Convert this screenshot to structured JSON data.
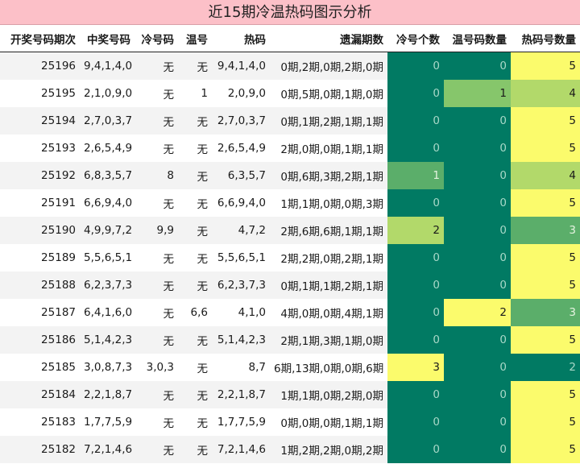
{
  "title": "近15期冷温热码图示分析",
  "headers": [
    "开奖号码期次",
    "中奖号码",
    "冷号码",
    "温号",
    "热码",
    "遗漏期数",
    "冷号个数",
    "温号码数量",
    "热码号数量"
  ],
  "rows": [
    [
      "25196",
      "9,4,1,4,0",
      "无",
      "无",
      "9,4,1,4,0",
      "0期,2期,0期,2期,0期",
      "0",
      "0",
      "5"
    ],
    [
      "25195",
      "2,1,0,9,0",
      "无",
      "1",
      "2,0,9,0",
      "0期,5期,0期,1期,0期",
      "0",
      "1",
      "4"
    ],
    [
      "25194",
      "2,7,0,3,7",
      "无",
      "无",
      "2,7,0,3,7",
      "0期,1期,2期,1期,1期",
      "0",
      "0",
      "5"
    ],
    [
      "25193",
      "2,6,5,4,9",
      "无",
      "无",
      "2,6,5,4,9",
      "2期,0期,0期,1期,1期",
      "0",
      "0",
      "5"
    ],
    [
      "25192",
      "6,8,3,5,7",
      "8",
      "无",
      "6,3,5,7",
      "0期,6期,3期,2期,1期",
      "1",
      "0",
      "4"
    ],
    [
      "25191",
      "6,6,9,4,0",
      "无",
      "无",
      "6,6,9,4,0",
      "1期,1期,0期,0期,3期",
      "0",
      "0",
      "5"
    ],
    [
      "25190",
      "4,9,9,7,2",
      "9,9",
      "无",
      "4,7,2",
      "2期,6期,6期,1期,1期",
      "2",
      "0",
      "3"
    ],
    [
      "25189",
      "5,5,6,5,1",
      "无",
      "无",
      "5,5,6,5,1",
      "2期,2期,0期,2期,1期",
      "0",
      "0",
      "5"
    ],
    [
      "25188",
      "6,2,3,7,3",
      "无",
      "无",
      "6,2,3,7,3",
      "0期,1期,1期,2期,1期",
      "0",
      "0",
      "5"
    ],
    [
      "25187",
      "6,4,1,6,0",
      "无",
      "6,6",
      "4,1,0",
      "4期,0期,0期,4期,1期",
      "0",
      "2",
      "3"
    ],
    [
      "25186",
      "5,1,4,2,3",
      "无",
      "无",
      "5,1,4,2,3",
      "2期,1期,3期,1期,0期",
      "0",
      "0",
      "5"
    ],
    [
      "25185",
      "3,0,8,7,3",
      "3,0,3",
      "无",
      "8,7",
      "6期,13期,0期,0期,6期",
      "3",
      "0",
      "2"
    ],
    [
      "25184",
      "2,2,1,8,7",
      "无",
      "无",
      "2,2,1,8,7",
      "1期,1期,0期,2期,0期",
      "0",
      "0",
      "5"
    ],
    [
      "25183",
      "1,7,7,5,9",
      "无",
      "无",
      "1,7,7,5,9",
      "0期,0期,0期,1期,1期",
      "0",
      "0",
      "5"
    ],
    [
      "25182",
      "7,2,1,4,6",
      "无",
      "无",
      "7,2,1,4,6",
      "1期,2期,2期,0期,2期",
      "0",
      "0",
      "5"
    ]
  ],
  "heat_colors": {
    "lowest": "#017a63",
    "low": "#5bae6a",
    "mid": "#86c66b",
    "high": "#b2d96a",
    "highest": "#fbfb6c"
  }
}
